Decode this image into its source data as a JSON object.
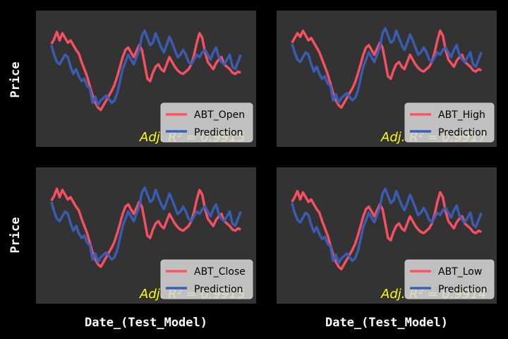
{
  "colors": {
    "figure_bg": "#000000",
    "axes_bg": "#333333",
    "actual": "#ff5265",
    "prediction": "#3a5fb8",
    "annotation": "#ffff00",
    "legend_bg": "#d9d9d9"
  },
  "chart_data": [
    {
      "type": "line",
      "ylabel": "Price",
      "xlabel": "",
      "ticks_visible": false,
      "legend_placement": "lower-right",
      "annotation": "Adj. R² = 0.9915",
      "x": [
        0,
        1,
        2,
        3,
        4,
        5,
        6,
        7,
        8,
        9,
        10,
        11,
        12,
        13,
        14,
        15,
        16,
        17,
        18,
        19,
        20,
        21,
        22,
        23,
        24,
        25,
        26,
        27,
        28,
        29,
        30,
        31,
        32,
        33,
        34,
        35,
        36,
        37,
        38,
        39,
        40,
        41,
        42,
        43,
        44,
        45,
        46,
        47,
        48,
        49,
        50,
        51,
        52,
        53,
        54,
        55,
        56,
        57,
        58,
        59,
        60,
        61,
        62,
        63,
        64,
        65,
        66,
        67,
        68,
        69
      ],
      "series": [
        {
          "name": "ABT_Open",
          "role": "actual",
          "values": [
            0.79,
            0.83,
            0.89,
            0.82,
            0.88,
            0.84,
            0.8,
            0.82,
            0.78,
            0.74,
            0.71,
            0.64,
            0.58,
            0.52,
            0.44,
            0.36,
            0.3,
            0.26,
            0.24,
            0.28,
            0.32,
            0.36,
            0.4,
            0.45,
            0.52,
            0.6,
            0.68,
            0.74,
            0.76,
            0.72,
            0.68,
            0.73,
            0.78,
            0.74,
            0.62,
            0.5,
            0.48,
            0.55,
            0.6,
            0.62,
            0.58,
            0.56,
            0.62,
            0.68,
            0.64,
            0.6,
            0.57,
            0.55,
            0.54,
            0.56,
            0.58,
            0.62,
            0.7,
            0.8,
            0.88,
            0.84,
            0.72,
            0.64,
            0.61,
            0.58,
            0.63,
            0.66,
            0.68,
            0.62,
            0.6,
            0.58,
            0.55,
            0.54,
            0.56,
            0.55
          ]
        },
        {
          "name": "Prediction",
          "role": "prediction",
          "values": [
            0.78,
            0.7,
            0.64,
            0.62,
            0.66,
            0.7,
            0.68,
            0.6,
            0.54,
            0.58,
            0.52,
            0.48,
            0.5,
            0.44,
            0.42,
            0.3,
            0.35,
            0.28,
            0.32,
            0.34,
            0.36,
            0.33,
            0.3,
            0.32,
            0.38,
            0.48,
            0.58,
            0.64,
            0.7,
            0.66,
            0.62,
            0.68,
            0.74,
            0.86,
            0.9,
            0.84,
            0.78,
            0.8,
            0.88,
            0.82,
            0.76,
            0.72,
            0.78,
            0.85,
            0.8,
            0.74,
            0.68,
            0.7,
            0.74,
            0.7,
            0.64,
            0.62,
            0.66,
            0.7,
            0.68,
            0.72,
            0.74,
            0.7,
            0.66,
            0.72,
            0.76,
            0.68,
            0.64,
            0.62,
            0.66,
            0.7,
            0.6,
            0.58,
            0.64,
            0.7
          ]
        }
      ]
    },
    {
      "type": "line",
      "ylabel": "",
      "xlabel": "",
      "ticks_visible": false,
      "legend_placement": "lower-right",
      "annotation": "Adj. R² = 0.9917",
      "x": [
        0,
        1,
        2,
        3,
        4,
        5,
        6,
        7,
        8,
        9,
        10,
        11,
        12,
        13,
        14,
        15,
        16,
        17,
        18,
        19,
        20,
        21,
        22,
        23,
        24,
        25,
        26,
        27,
        28,
        29,
        30,
        31,
        32,
        33,
        34,
        35,
        36,
        37,
        38,
        39,
        40,
        41,
        42,
        43,
        44,
        45,
        46,
        47,
        48,
        49,
        50,
        51,
        52,
        53,
        54,
        55,
        56,
        57,
        58,
        59,
        60,
        61,
        62,
        63,
        64,
        65,
        66,
        67,
        68,
        69
      ],
      "series": [
        {
          "name": "ABT_High",
          "role": "actual",
          "values": [
            0.8,
            0.84,
            0.88,
            0.85,
            0.9,
            0.86,
            0.82,
            0.84,
            0.8,
            0.76,
            0.72,
            0.66,
            0.6,
            0.54,
            0.46,
            0.38,
            0.32,
            0.28,
            0.26,
            0.3,
            0.34,
            0.38,
            0.42,
            0.47,
            0.54,
            0.62,
            0.7,
            0.76,
            0.78,
            0.74,
            0.7,
            0.75,
            0.8,
            0.76,
            0.64,
            0.52,
            0.5,
            0.57,
            0.62,
            0.64,
            0.6,
            0.58,
            0.64,
            0.7,
            0.66,
            0.62,
            0.59,
            0.57,
            0.56,
            0.58,
            0.6,
            0.64,
            0.72,
            0.82,
            0.9,
            0.86,
            0.74,
            0.66,
            0.63,
            0.6,
            0.65,
            0.68,
            0.7,
            0.64,
            0.62,
            0.6,
            0.57,
            0.56,
            0.58,
            0.57
          ]
        },
        {
          "name": "Prediction",
          "role": "prediction",
          "values": [
            0.79,
            0.72,
            0.66,
            0.64,
            0.68,
            0.72,
            0.7,
            0.62,
            0.56,
            0.6,
            0.54,
            0.5,
            0.52,
            0.46,
            0.44,
            0.32,
            0.37,
            0.3,
            0.34,
            0.36,
            0.38,
            0.35,
            0.32,
            0.34,
            0.4,
            0.5,
            0.6,
            0.66,
            0.72,
            0.68,
            0.64,
            0.7,
            0.76,
            0.88,
            0.92,
            0.86,
            0.8,
            0.82,
            0.9,
            0.84,
            0.78,
            0.74,
            0.8,
            0.87,
            0.82,
            0.76,
            0.7,
            0.72,
            0.76,
            0.72,
            0.66,
            0.64,
            0.68,
            0.72,
            0.7,
            0.74,
            0.76,
            0.72,
            0.68,
            0.74,
            0.78,
            0.7,
            0.66,
            0.64,
            0.68,
            0.72,
            0.62,
            0.6,
            0.66,
            0.72
          ]
        }
      ]
    },
    {
      "type": "line",
      "ylabel": "Price",
      "xlabel": "Date_(Test_Model)",
      "ticks_visible": false,
      "legend_placement": "lower-right",
      "annotation": "Adj. R² = 0.9915",
      "x": [
        0,
        1,
        2,
        3,
        4,
        5,
        6,
        7,
        8,
        9,
        10,
        11,
        12,
        13,
        14,
        15,
        16,
        17,
        18,
        19,
        20,
        21,
        22,
        23,
        24,
        25,
        26,
        27,
        28,
        29,
        30,
        31,
        32,
        33,
        34,
        35,
        36,
        37,
        38,
        39,
        40,
        41,
        42,
        43,
        44,
        45,
        46,
        47,
        48,
        49,
        50,
        51,
        52,
        53,
        54,
        55,
        56,
        57,
        58,
        59,
        60,
        61,
        62,
        63,
        64,
        65,
        66,
        67,
        68,
        69
      ],
      "series": [
        {
          "name": "ABT_Close",
          "role": "actual",
          "values": [
            0.79,
            0.83,
            0.89,
            0.82,
            0.88,
            0.84,
            0.8,
            0.82,
            0.78,
            0.74,
            0.71,
            0.64,
            0.58,
            0.52,
            0.44,
            0.36,
            0.3,
            0.26,
            0.24,
            0.28,
            0.32,
            0.36,
            0.4,
            0.45,
            0.52,
            0.6,
            0.68,
            0.74,
            0.76,
            0.72,
            0.68,
            0.73,
            0.78,
            0.74,
            0.62,
            0.5,
            0.48,
            0.55,
            0.6,
            0.62,
            0.58,
            0.56,
            0.62,
            0.68,
            0.64,
            0.6,
            0.57,
            0.55,
            0.54,
            0.56,
            0.58,
            0.62,
            0.7,
            0.8,
            0.88,
            0.84,
            0.72,
            0.64,
            0.61,
            0.58,
            0.63,
            0.66,
            0.68,
            0.62,
            0.6,
            0.58,
            0.55,
            0.54,
            0.56,
            0.55
          ]
        },
        {
          "name": "Prediction",
          "role": "prediction",
          "values": [
            0.78,
            0.7,
            0.64,
            0.62,
            0.66,
            0.7,
            0.68,
            0.6,
            0.54,
            0.58,
            0.52,
            0.48,
            0.5,
            0.44,
            0.42,
            0.3,
            0.35,
            0.28,
            0.32,
            0.34,
            0.36,
            0.33,
            0.3,
            0.32,
            0.38,
            0.48,
            0.58,
            0.64,
            0.7,
            0.66,
            0.62,
            0.68,
            0.74,
            0.86,
            0.9,
            0.84,
            0.78,
            0.8,
            0.88,
            0.82,
            0.76,
            0.72,
            0.78,
            0.85,
            0.8,
            0.74,
            0.68,
            0.7,
            0.74,
            0.7,
            0.64,
            0.62,
            0.66,
            0.7,
            0.68,
            0.72,
            0.74,
            0.7,
            0.66,
            0.72,
            0.76,
            0.68,
            0.64,
            0.62,
            0.66,
            0.7,
            0.6,
            0.58,
            0.64,
            0.7
          ]
        }
      ]
    },
    {
      "type": "line",
      "ylabel": "",
      "xlabel": "Date_(Test_Model)",
      "ticks_visible": false,
      "legend_placement": "lower-right",
      "annotation": "Adj. R² = 0.9914",
      "x": [
        0,
        1,
        2,
        3,
        4,
        5,
        6,
        7,
        8,
        9,
        10,
        11,
        12,
        13,
        14,
        15,
        16,
        17,
        18,
        19,
        20,
        21,
        22,
        23,
        24,
        25,
        26,
        27,
        28,
        29,
        30,
        31,
        32,
        33,
        34,
        35,
        36,
        37,
        38,
        39,
        40,
        41,
        42,
        43,
        44,
        45,
        46,
        47,
        48,
        49,
        50,
        51,
        52,
        53,
        54,
        55,
        56,
        57,
        58,
        59,
        60,
        61,
        62,
        63,
        64,
        65,
        66,
        67,
        68,
        69
      ],
      "series": [
        {
          "name": "ABT_Low",
          "role": "actual",
          "values": [
            0.78,
            0.82,
            0.87,
            0.8,
            0.86,
            0.82,
            0.78,
            0.8,
            0.76,
            0.72,
            0.69,
            0.62,
            0.56,
            0.5,
            0.42,
            0.34,
            0.28,
            0.24,
            0.22,
            0.26,
            0.3,
            0.34,
            0.38,
            0.43,
            0.5,
            0.58,
            0.66,
            0.72,
            0.74,
            0.7,
            0.66,
            0.71,
            0.76,
            0.72,
            0.6,
            0.48,
            0.46,
            0.53,
            0.58,
            0.6,
            0.56,
            0.54,
            0.6,
            0.66,
            0.62,
            0.58,
            0.55,
            0.53,
            0.52,
            0.54,
            0.56,
            0.6,
            0.68,
            0.78,
            0.86,
            0.82,
            0.7,
            0.62,
            0.59,
            0.56,
            0.61,
            0.64,
            0.66,
            0.6,
            0.58,
            0.56,
            0.53,
            0.52,
            0.54,
            0.53
          ]
        },
        {
          "name": "Prediction",
          "role": "prediction",
          "values": [
            0.77,
            0.69,
            0.63,
            0.61,
            0.65,
            0.69,
            0.67,
            0.59,
            0.53,
            0.57,
            0.51,
            0.47,
            0.49,
            0.43,
            0.41,
            0.29,
            0.34,
            0.27,
            0.31,
            0.33,
            0.35,
            0.32,
            0.29,
            0.31,
            0.37,
            0.47,
            0.57,
            0.63,
            0.69,
            0.65,
            0.61,
            0.67,
            0.73,
            0.85,
            0.89,
            0.83,
            0.77,
            0.79,
            0.87,
            0.81,
            0.75,
            0.71,
            0.77,
            0.84,
            0.79,
            0.73,
            0.67,
            0.69,
            0.73,
            0.69,
            0.63,
            0.61,
            0.65,
            0.69,
            0.67,
            0.71,
            0.73,
            0.69,
            0.65,
            0.71,
            0.75,
            0.67,
            0.63,
            0.61,
            0.65,
            0.69,
            0.59,
            0.57,
            0.63,
            0.69
          ]
        }
      ]
    }
  ]
}
